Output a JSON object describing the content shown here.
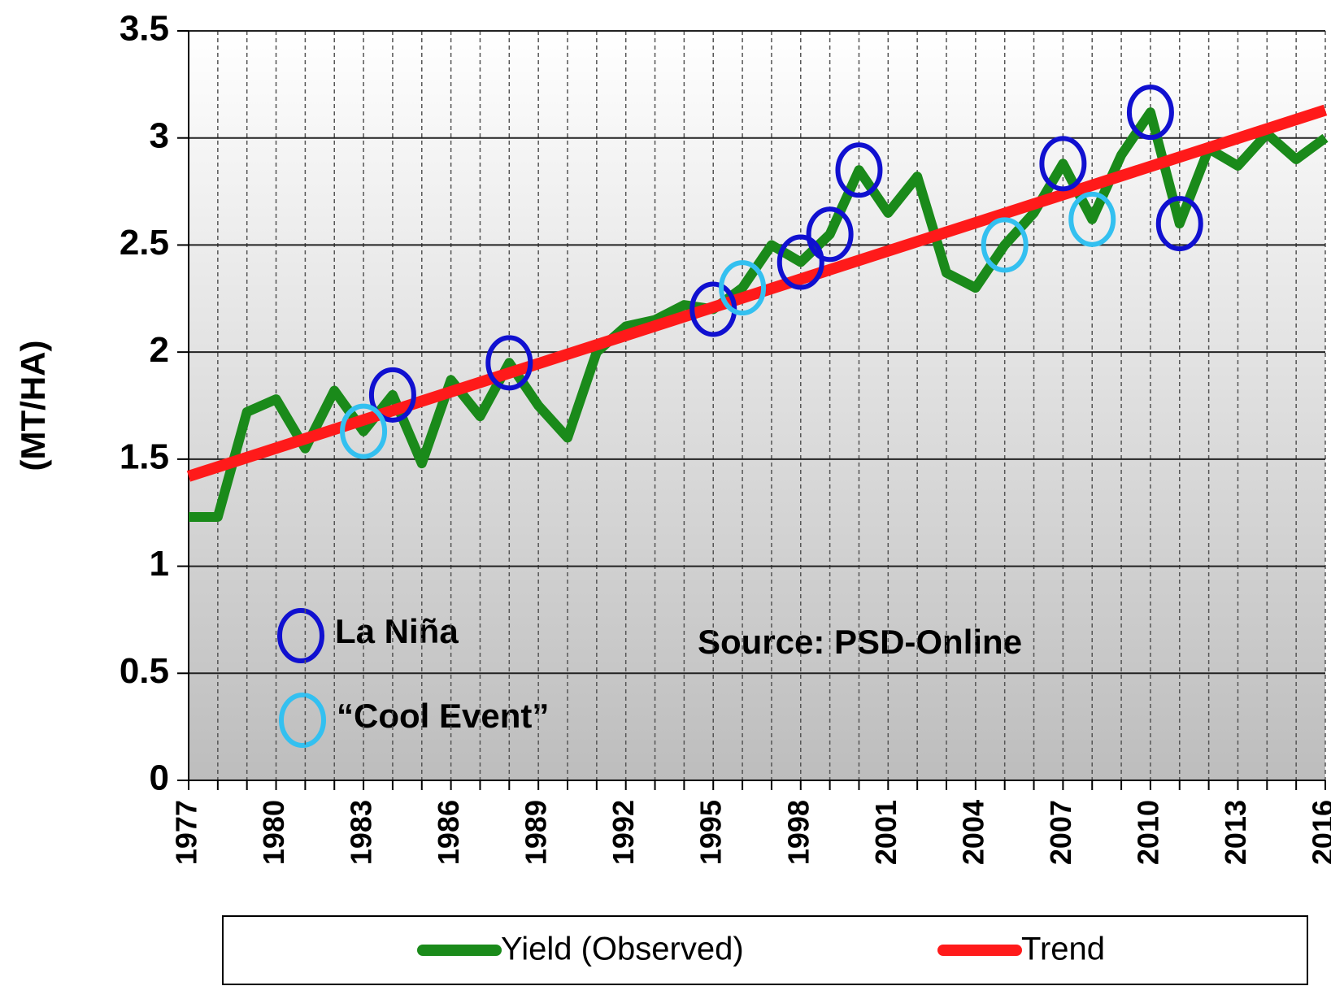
{
  "chart_data": {
    "type": "line",
    "y_label": "(MT/HA)",
    "x": [
      1977,
      1978,
      1979,
      1980,
      1981,
      1982,
      1983,
      1984,
      1985,
      1986,
      1987,
      1988,
      1989,
      1990,
      1991,
      1992,
      1993,
      1994,
      1995,
      1996,
      1997,
      1998,
      1999,
      2000,
      2001,
      2002,
      2003,
      2004,
      2005,
      2006,
      2007,
      2008,
      2009,
      2010,
      2011,
      2012,
      2013,
      2014,
      2015,
      2016
    ],
    "series": [
      {
        "name": "Yield (Observed)",
        "color": "#1a8a1a",
        "values": [
          1.23,
          1.23,
          1.72,
          1.78,
          1.55,
          1.82,
          1.63,
          1.8,
          1.48,
          1.87,
          1.7,
          1.95,
          1.75,
          1.6,
          2.0,
          2.12,
          2.15,
          2.22,
          2.2,
          2.3,
          2.5,
          2.42,
          2.55,
          2.85,
          2.65,
          2.82,
          2.37,
          2.3,
          2.5,
          2.65,
          2.88,
          2.62,
          2.92,
          3.12,
          2.6,
          2.95,
          2.87,
          3.02,
          2.9,
          3.0
        ]
      },
      {
        "name": "Trend",
        "color": "#ff1a1a",
        "x": [
          1977,
          2016
        ],
        "values": [
          1.42,
          3.13
        ]
      }
    ],
    "xlim": [
      1977,
      2016
    ],
    "xticks": [
      1977,
      1980,
      1983,
      1986,
      1989,
      1992,
      1995,
      1998,
      2001,
      2004,
      2007,
      2010,
      2013,
      2016
    ],
    "ylim": [
      0,
      3.5
    ],
    "yticks": [
      0,
      0.5,
      1,
      1.5,
      2,
      2.5,
      3,
      3.5
    ],
    "grid": true,
    "annotations": {
      "la_nina": {
        "label": "La Niña",
        "color": "#1010d0",
        "years": [
          1984,
          1988,
          1995,
          1998,
          1999,
          2000,
          2007,
          2010,
          2011
        ]
      },
      "cool_event": {
        "label": "“Cool Event”",
        "color": "#33c0f0",
        "years": [
          1983,
          1996,
          2005,
          2008
        ]
      },
      "source": "Source: PSD-Online"
    }
  }
}
